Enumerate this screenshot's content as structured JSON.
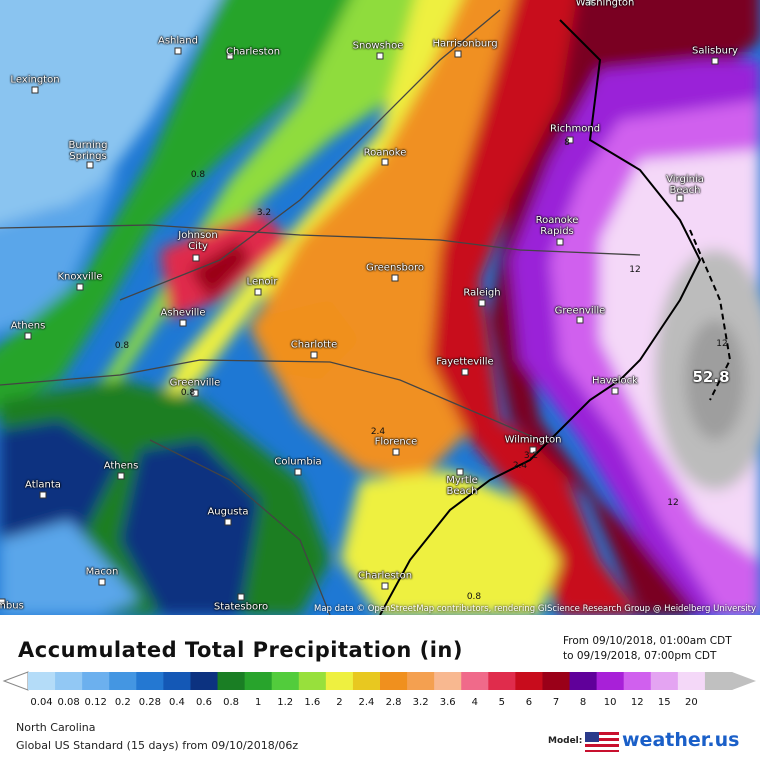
{
  "map": {
    "cities": [
      "Lexington",
      "Ashland",
      "Charleston",
      "Snowshoe",
      "Harrisonburg",
      "Washington",
      "Salisbury",
      "Burning Springs",
      "Richmond",
      "Virginia Beach",
      "Roanoke",
      "Johnson City",
      "Roanoke Rapids",
      "Knoxville",
      "Lenoir",
      "Greensboro",
      "Raleigh",
      "Asheville",
      "Greenville",
      "Athens",
      "Charlotte",
      "Fayetteville",
      "Havelock",
      "Greenville",
      "Wilmington",
      "Florence",
      "Athens",
      "Columbia",
      "Myrtle Beach",
      "Atlanta",
      "Augusta",
      "Macon",
      "Charleston",
      "Statesboro",
      "mbus"
    ],
    "contour_labels": [
      "0.8",
      "3.2",
      "0.8",
      "0.8",
      "2.4",
      "2.4",
      "3.2",
      "12",
      "12",
      "12",
      "52.8",
      "0.8",
      "8"
    ],
    "attribution": "Map data © OpenStreetMap contributors, rendering GIScience Research Group @ Heidelberg University"
  },
  "footer": {
    "title": "Accumulated Total Precipitation (in)",
    "from": "From 09/10/2018, 01:00am CDT",
    "to": "to 09/19/2018, 07:00pm CDT",
    "region": "North Carolina",
    "model_run": "Global US Standard (15 days) from 09/10/2018/06z",
    "model_label": "Model:",
    "brand": "weather.us"
  },
  "legend": {
    "ticks": [
      "0.04",
      "0.08",
      "0.12",
      "0.2",
      "0.28",
      "0.4",
      "0.6",
      "0.8",
      "1",
      "1.2",
      "1.6",
      "2",
      "2.4",
      "2.8",
      "3.2",
      "3.6",
      "4",
      "5",
      "6",
      "7",
      "8",
      "10",
      "12",
      "15",
      "20"
    ],
    "colors": [
      "#b4dcf8",
      "#92c8f4",
      "#6cb0ee",
      "#4496e2",
      "#2478d2",
      "#1458b6",
      "#0c3280",
      "#1a7e24",
      "#28a42c",
      "#52cc3c",
      "#98e03c",
      "#eef040",
      "#e8c820",
      "#f0901e",
      "#f4a050",
      "#f8b890",
      "#f06a8a",
      "#e02c4c",
      "#c80c1c",
      "#9a0018",
      "#60009a",
      "#a820d8",
      "#d060ee",
      "#e4a4f2",
      "#f4d8f8",
      "#c0c0c0"
    ]
  }
}
